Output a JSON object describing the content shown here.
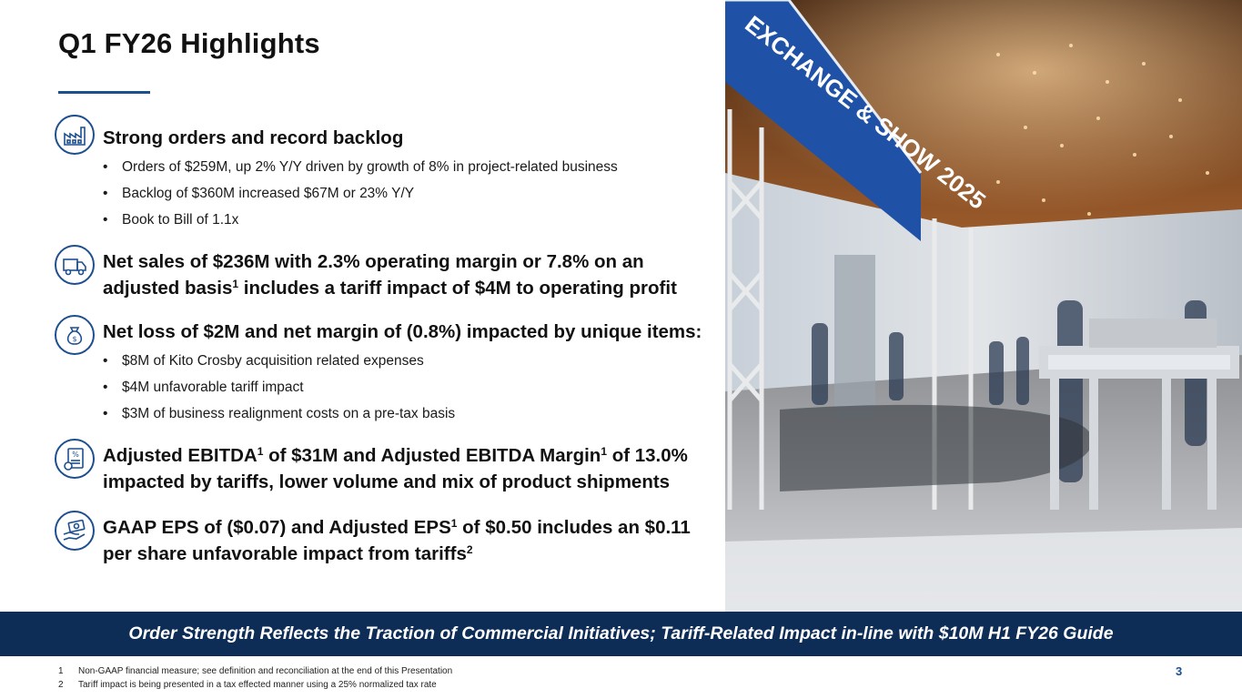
{
  "slide": {
    "title": "Q1 FY26 Highlights",
    "accent_color": "#1d4f8f",
    "banner_color": "#0d2d57"
  },
  "sections": [
    {
      "icon": "factory-icon",
      "heading_lines": [
        "Strong orders and record backlog"
      ],
      "bullets": [
        "Orders of $259M, up 2% Y/Y driven by growth of 8% in project-related business",
        "Backlog of $360M increased $67M or 23% Y/Y",
        "Book to Bill of 1.1x"
      ]
    },
    {
      "icon": "delivery-truck-icon",
      "heading_lines": [
        "Net sales of $236M with 2.3% operating margin or 7.8% on an",
        "adjusted basis",
        "1",
        " includes a tariff impact of $4M to operating profit"
      ]
    },
    {
      "icon": "money-bag-icon",
      "heading_lines": [
        "Net loss of $2M and net margin of (0.8%) impacted by unique items:"
      ],
      "bullets": [
        "$8M of Kito Crosby acquisition related expenses",
        "$4M unfavorable tariff impact",
        "$3M of business realignment costs on a pre-tax basis"
      ]
    },
    {
      "icon": "percent-document-icon",
      "heading_parts": [
        "Adjusted EBITDA",
        "1",
        " of $31M and Adjusted EBITDA Margin",
        "1",
        " of 13.0%",
        "impacted by tariffs, lower volume and mix of product shipments"
      ]
    },
    {
      "icon": "cash-hand-icon",
      "heading_parts": [
        "GAAP EPS of ($0.07) and Adjusted EPS",
        "1",
        " of $0.50 includes an $0.11",
        "per share unfavorable impact from tariffs",
        "2"
      ]
    }
  ],
  "photo": {
    "sign_text": "EXCHANGE & SHOW 2025"
  },
  "banner": "Order Strength Reflects the Traction of Commercial Initiatives; Tariff-Related Impact in-line with $10M H1 FY26 Guide",
  "footnotes": [
    {
      "num": "1",
      "text": "Non-GAAP financial measure; see definition and reconciliation at the end of this Presentation"
    },
    {
      "num": "2",
      "text": "Tariff impact is being presented in a tax effected manner using a 25% normalized tax rate"
    }
  ],
  "page_number": "3"
}
